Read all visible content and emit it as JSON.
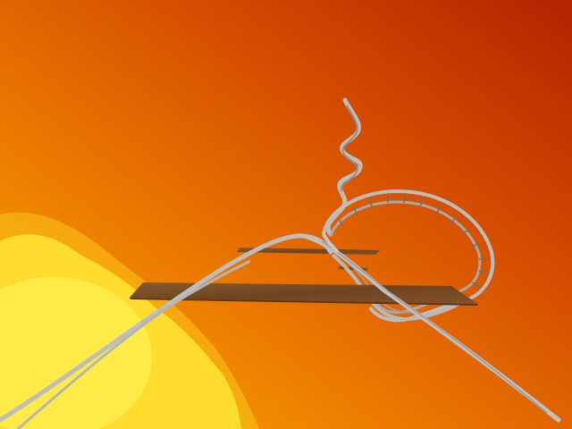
{
  "scene": {
    "sky_colors": {
      "top_right": "#b82800",
      "mid": "#e05a00",
      "left": "#f4a000",
      "sun_glow": "#fff24a"
    },
    "track_color": "#b9b9b9",
    "tie_color": "#6f6f6f",
    "platform_color": "#7a4a22"
  }
}
